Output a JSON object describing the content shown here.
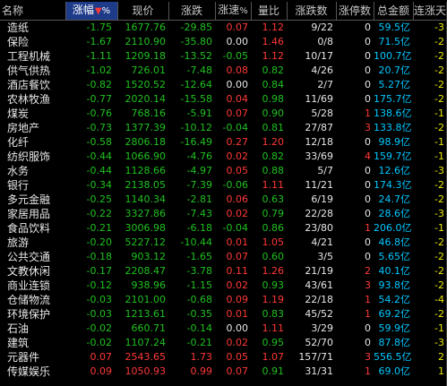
{
  "columns": {
    "name": "名称",
    "change_pct": "涨幅",
    "price": "现价",
    "change": "涨跌",
    "speed": "涨速",
    "vol_ratio": "量比",
    "up_count": "涨跌数",
    "limit_up": "涨停数",
    "amount": "总金额",
    "streak": "连涨天",
    "sort_mark": "▼",
    "pct_sign": "%"
  },
  "rows": [
    {
      "name": "造纸",
      "change_pct": "-1.75",
      "price": "1677.76",
      "change": "-29.85",
      "speed": "0.07",
      "vol_ratio": "1.12",
      "up_count": "9/22",
      "limit_up": "0",
      "amount": "59.5亿",
      "streak": "-3"
    },
    {
      "name": "保险",
      "change_pct": "-1.67",
      "price": "2110.90",
      "change": "-35.80",
      "speed": "0.00",
      "vol_ratio": "1.46",
      "up_count": "0/8",
      "limit_up": "0",
      "amount": "71.5亿",
      "streak": "-2"
    },
    {
      "name": "工程机械",
      "change_pct": "-1.11",
      "price": "1209.18",
      "change": "-13.52",
      "speed": "-0.05",
      "vol_ratio": "1.12",
      "up_count": "10/17",
      "limit_up": "0",
      "amount": "100.7亿",
      "streak": "-2"
    },
    {
      "name": "供气供热",
      "change_pct": "-1.02",
      "price": "726.01",
      "change": "-7.48",
      "speed": "0.08",
      "vol_ratio": "0.82",
      "up_count": "4/26",
      "limit_up": "0",
      "amount": "20.7亿",
      "streak": "-2"
    },
    {
      "name": "酒店餐饮",
      "change_pct": "-0.82",
      "price": "1520.52",
      "change": "-12.64",
      "speed": "0.00",
      "vol_ratio": "0.84",
      "up_count": "2/7",
      "limit_up": "0",
      "amount": "5.27亿",
      "streak": "-2"
    },
    {
      "name": "农林牧渔",
      "change_pct": "-0.77",
      "price": "2020.14",
      "change": "-15.58",
      "speed": "0.04",
      "vol_ratio": "0.98",
      "up_count": "11/69",
      "limit_up": "0",
      "amount": "175.7亿",
      "streak": "-2"
    },
    {
      "name": "煤炭",
      "change_pct": "-0.76",
      "price": "768.16",
      "change": "-5.91",
      "speed": "0.07",
      "vol_ratio": "0.90",
      "up_count": "5/28",
      "limit_up": "1",
      "amount": "138.6亿",
      "streak": "-1"
    },
    {
      "name": "房地产",
      "change_pct": "-0.73",
      "price": "1377.39",
      "change": "-10.12",
      "speed": "-0.04",
      "vol_ratio": "0.81",
      "up_count": "27/87",
      "limit_up": "3",
      "amount": "133.8亿",
      "streak": "-2"
    },
    {
      "name": "化纤",
      "change_pct": "-0.58",
      "price": "2806.18",
      "change": "-16.49",
      "speed": "0.27",
      "vol_ratio": "1.20",
      "up_count": "12/18",
      "limit_up": "0",
      "amount": "98.9亿",
      "streak": "-1"
    },
    {
      "name": "纺织服饰",
      "change_pct": "-0.44",
      "price": "1066.90",
      "change": "-4.76",
      "speed": "0.02",
      "vol_ratio": "0.82",
      "up_count": "33/69",
      "limit_up": "4",
      "amount": "159.7亿",
      "streak": "-1"
    },
    {
      "name": "水务",
      "change_pct": "-0.44",
      "price": "1128.66",
      "change": "-4.97",
      "speed": "0.05",
      "vol_ratio": "0.88",
      "up_count": "5/7",
      "limit_up": "0",
      "amount": "12.6亿",
      "streak": "-3"
    },
    {
      "name": "银行",
      "change_pct": "-0.34",
      "price": "2138.05",
      "change": "-7.39",
      "speed": "-0.06",
      "vol_ratio": "1.11",
      "up_count": "11/21",
      "limit_up": "0",
      "amount": "174.3亿",
      "streak": "-2"
    },
    {
      "name": "多元金融",
      "change_pct": "-0.25",
      "price": "1140.34",
      "change": "-2.81",
      "speed": "0.06",
      "vol_ratio": "0.63",
      "up_count": "6/19",
      "limit_up": "0",
      "amount": "24.7亿",
      "streak": "-2"
    },
    {
      "name": "家居用品",
      "change_pct": "-0.22",
      "price": "3327.86",
      "change": "-7.43",
      "speed": "0.02",
      "vol_ratio": "0.79",
      "up_count": "22/28",
      "limit_up": "0",
      "amount": "28.6亿",
      "streak": "-3"
    },
    {
      "name": "食品饮料",
      "change_pct": "-0.21",
      "price": "3006.98",
      "change": "-6.18",
      "speed": "-0.04",
      "vol_ratio": "0.86",
      "up_count": "23/80",
      "limit_up": "1",
      "amount": "206.0亿",
      "streak": "-1"
    },
    {
      "name": "旅游",
      "change_pct": "-0.20",
      "price": "5227.12",
      "change": "-10.44",
      "speed": "0.01",
      "vol_ratio": "1.05",
      "up_count": "4/21",
      "limit_up": "0",
      "amount": "46.8亿",
      "streak": "-2"
    },
    {
      "name": "公共交通",
      "change_pct": "-0.18",
      "price": "903.12",
      "change": "-1.65",
      "speed": "0.07",
      "vol_ratio": "0.60",
      "up_count": "3/5",
      "limit_up": "0",
      "amount": "5.65亿",
      "streak": "-2"
    },
    {
      "name": "文教休闲",
      "change_pct": "-0.17",
      "price": "2208.47",
      "change": "-3.78",
      "speed": "0.11",
      "vol_ratio": "1.26",
      "up_count": "21/19",
      "limit_up": "2",
      "amount": "40.1亿",
      "streak": "-2"
    },
    {
      "name": "商业连锁",
      "change_pct": "-0.12",
      "price": "938.96",
      "change": "-1.15",
      "speed": "0.02",
      "vol_ratio": "0.93",
      "up_count": "43/61",
      "limit_up": "3",
      "amount": "93.8亿",
      "streak": "-2"
    },
    {
      "name": "仓储物流",
      "change_pct": "-0.03",
      "price": "2101.00",
      "change": "-0.68",
      "speed": "0.09",
      "vol_ratio": "1.19",
      "up_count": "22/18",
      "limit_up": "1",
      "amount": "54.2亿",
      "streak": "-4"
    },
    {
      "name": "环境保护",
      "change_pct": "-0.03",
      "price": "1213.61",
      "change": "-0.35",
      "speed": "0.01",
      "vol_ratio": "0.83",
      "up_count": "45/52",
      "limit_up": "1",
      "amount": "69.2亿",
      "streak": "-2"
    },
    {
      "name": "石油",
      "change_pct": "-0.02",
      "price": "660.71",
      "change": "-0.14",
      "speed": "0.00",
      "vol_ratio": "1.11",
      "up_count": "3/29",
      "limit_up": "0",
      "amount": "59.9亿",
      "streak": "-1"
    },
    {
      "name": "建筑",
      "change_pct": "-0.02",
      "price": "1107.24",
      "change": "-0.21",
      "speed": "0.02",
      "vol_ratio": "0.95",
      "up_count": "52/70",
      "limit_up": "0",
      "amount": "87.8亿",
      "streak": "-3"
    },
    {
      "name": "元器件",
      "change_pct": "0.07",
      "price": "2543.65",
      "change": "1.73",
      "speed": "0.05",
      "vol_ratio": "1.07",
      "up_count": "157/71",
      "limit_up": "3",
      "amount": "556.5亿",
      "streak": "2"
    },
    {
      "name": "传媒娱乐",
      "change_pct": "0.09",
      "price": "1050.93",
      "change": "0.99",
      "speed": "0.07",
      "vol_ratio": "0.91",
      "up_count": "31/31",
      "limit_up": "1",
      "amount": "69.0亿",
      "streak": "1"
    }
  ],
  "colors": {
    "negative": "#20c020",
    "positive": "#ff3838",
    "header_highlight": "#1e3b8a",
    "background": "#000000"
  }
}
